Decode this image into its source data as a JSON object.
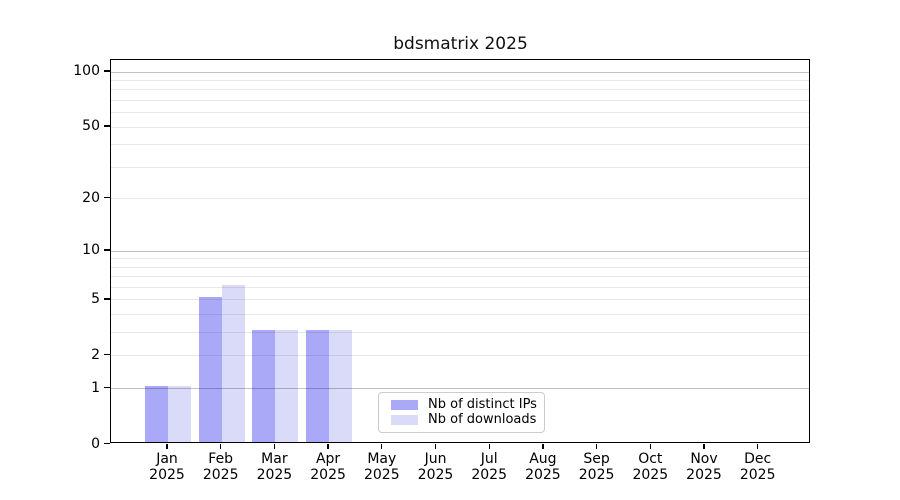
{
  "chart_data": {
    "type": "bar",
    "title": "bdsmatrix 2025",
    "categories": [
      "Jan 2025",
      "Feb 2025",
      "Mar 2025",
      "Apr 2025",
      "May 2025",
      "Jun 2025",
      "Jul 2025",
      "Aug 2025",
      "Sep 2025",
      "Oct 2025",
      "Nov 2025",
      "Dec 2025"
    ],
    "x_tick_labels": [
      [
        "Jan",
        "2025"
      ],
      [
        "Feb",
        "2025"
      ],
      [
        "Mar",
        "2025"
      ],
      [
        "Apr",
        "2025"
      ],
      [
        "May",
        "2025"
      ],
      [
        "Jun",
        "2025"
      ],
      [
        "Jul",
        "2025"
      ],
      [
        "Aug",
        "2025"
      ],
      [
        "Sep",
        "2025"
      ],
      [
        "Oct",
        "2025"
      ],
      [
        "Nov",
        "2025"
      ],
      [
        "Dec",
        "2025"
      ]
    ],
    "series": [
      {
        "name": "Nb of distinct IPs",
        "color": "#a9a9f8",
        "values": [
          1,
          5,
          3,
          3,
          0,
          0,
          0,
          0,
          0,
          0,
          0,
          0
        ]
      },
      {
        "name": "Nb of downloads",
        "color": "#dadaf9",
        "values": [
          1,
          6,
          3,
          3,
          0,
          0,
          0,
          0,
          0,
          0,
          0,
          0
        ]
      }
    ],
    "y_axis": {
      "scale": "log1p",
      "tick_values": [
        0,
        1,
        2,
        5,
        10,
        20,
        50,
        100
      ],
      "tick_labels": [
        "0",
        "1",
        "2",
        "5",
        "10",
        "20",
        "50",
        "100"
      ],
      "major_gridlines": [
        1,
        10,
        100
      ],
      "minor_gridlines": [
        2,
        3,
        4,
        5,
        6,
        7,
        8,
        9,
        20,
        30,
        40,
        50,
        60,
        70,
        80,
        90
      ],
      "ylim": [
        0,
        116
      ]
    },
    "grid": true,
    "legend_position": "bottom-center-inside",
    "colors": {
      "major_grid": "rgba(0,0,0,0.24)",
      "minor_grid": "rgba(0,0,0,0.085)",
      "axis": "#000000",
      "background": "#ffffff",
      "major_grid_hex": "#c2c2c2",
      "minor_grid_hex": "#ebebeb"
    }
  }
}
